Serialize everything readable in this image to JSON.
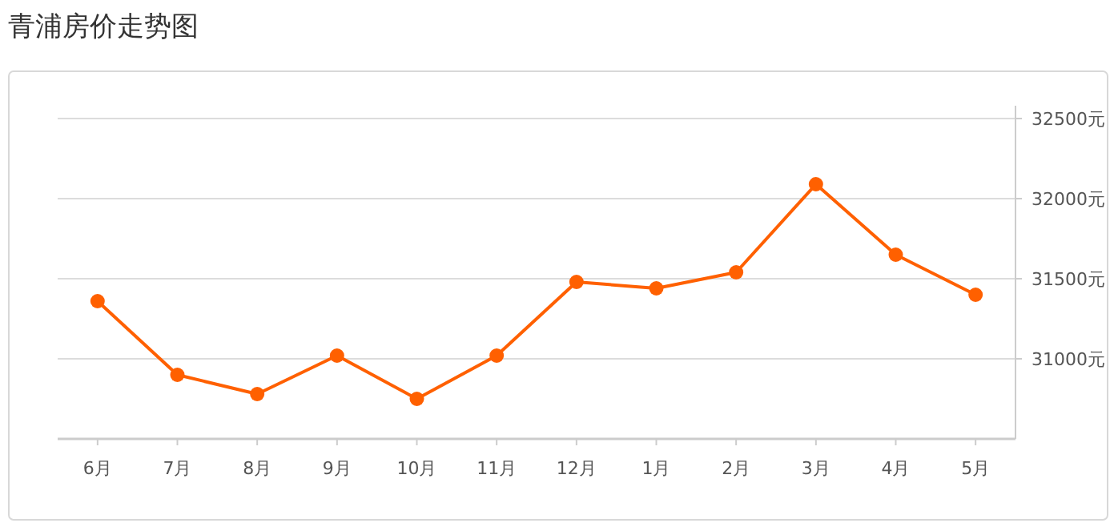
{
  "chart_data": {
    "type": "line",
    "title": "青浦房价走势图",
    "categories": [
      "6月",
      "7月",
      "8月",
      "9月",
      "10月",
      "11月",
      "12月",
      "1月",
      "2月",
      "3月",
      "4月",
      "5月"
    ],
    "series": [
      {
        "color": "#ff6000",
        "values": [
          31360,
          30900,
          30780,
          31020,
          30750,
          31020,
          31480,
          31440,
          31540,
          32090,
          31650,
          31400
        ]
      }
    ],
    "ylim": [
      30500,
      32500
    ],
    "yticks": [
      {
        "value": 31000,
        "label": "31000元"
      },
      {
        "value": 31500,
        "label": "31500元"
      },
      {
        "value": 32000,
        "label": "32000元"
      },
      {
        "value": 32500,
        "label": "32500元"
      }
    ],
    "grid": "y",
    "marker": "circle",
    "line_style": "solid"
  }
}
